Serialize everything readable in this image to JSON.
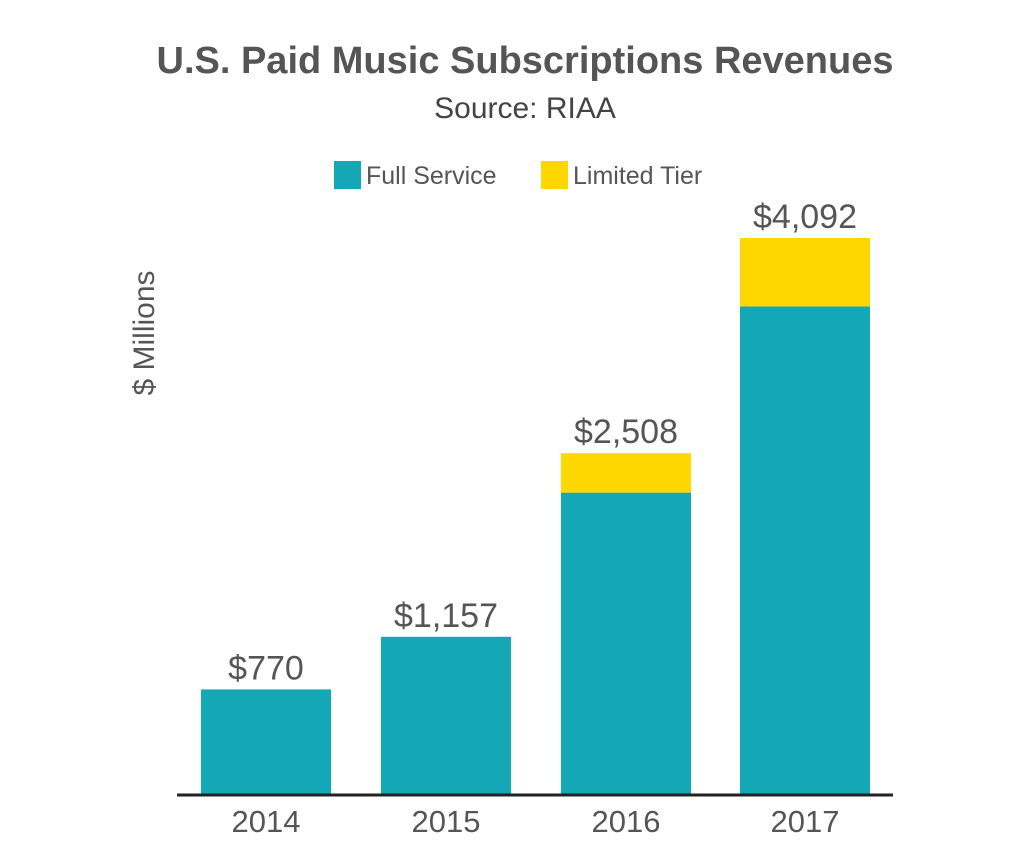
{
  "chart_data": {
    "type": "bar",
    "stacked": true,
    "title": "U.S. Paid Music Subscriptions Revenues",
    "subtitle": "Source: RIAA",
    "xlabel": "",
    "ylabel": "$ Millions",
    "categories": [
      "2014",
      "2015",
      "2016",
      "2017"
    ],
    "series": [
      {
        "name": "Full Service",
        "color": "#14A7B5",
        "values": [
          770,
          1157,
          2218,
          3588
        ]
      },
      {
        "name": "Limited Tier",
        "color": "#FFD700",
        "values": [
          0,
          0,
          290,
          504
        ]
      }
    ],
    "totals": [
      770,
      1157,
      2508,
      4092
    ],
    "data_labels": [
      "$770",
      "$1,157",
      "$2,508",
      "$4,092"
    ],
    "ylim": [
      0,
      4092
    ],
    "grid": false,
    "legend_position": "top-center",
    "axis_color": "#222222"
  }
}
